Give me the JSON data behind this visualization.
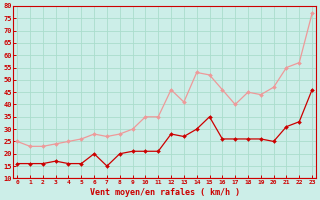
{
  "x": [
    0,
    1,
    2,
    3,
    4,
    5,
    6,
    7,
    8,
    9,
    10,
    11,
    12,
    13,
    14,
    15,
    16,
    17,
    18,
    19,
    20,
    21,
    22,
    23
  ],
  "wind_mean": [
    16,
    16,
    16,
    17,
    16,
    16,
    20,
    15,
    20,
    21,
    21,
    21,
    28,
    27,
    30,
    35,
    26,
    26,
    26,
    26,
    25,
    31,
    33,
    46
  ],
  "wind_gust": [
    25,
    23,
    23,
    24,
    25,
    26,
    28,
    27,
    28,
    30,
    35,
    35,
    46,
    41,
    53,
    52,
    46,
    40,
    45,
    44,
    47,
    55,
    57,
    77
  ],
  "bg_color": "#cceee8",
  "grid_color": "#aaddcc",
  "mean_color": "#cc0000",
  "gust_color": "#ee9999",
  "xlabel": "Vent moyen/en rafales ( km/h )",
  "xlabel_color": "#cc0000",
  "tick_color": "#cc0000",
  "ylim": [
    10,
    80
  ],
  "yticks": [
    10,
    15,
    20,
    25,
    30,
    35,
    40,
    45,
    50,
    55,
    60,
    65,
    70,
    75,
    80
  ],
  "ytick_labels": [
    "10",
    "15",
    "20",
    "25",
    "30",
    "35",
    "40",
    "45",
    "50",
    "55",
    "60",
    "65",
    "70",
    "75",
    "80"
  ]
}
